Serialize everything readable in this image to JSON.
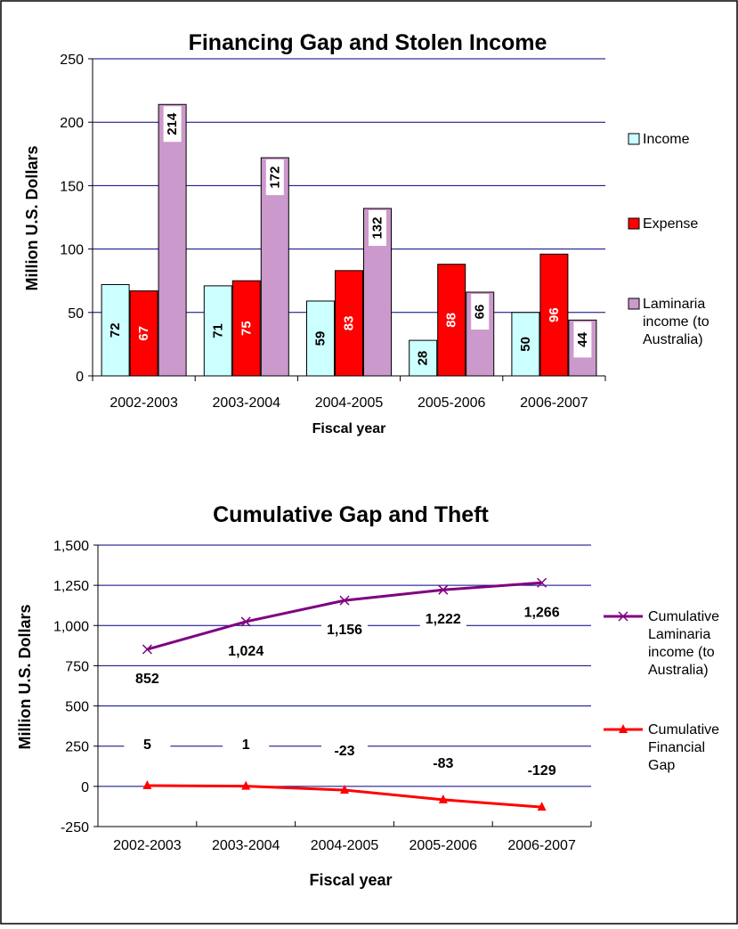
{
  "chart_data": [
    {
      "type": "bar",
      "title": "Financing Gap and Stolen Income",
      "xlabel": "Fiscal year",
      "ylabel": "Million U.S. Dollars",
      "categories": [
        "2002-2003",
        "2003-2004",
        "2004-2005",
        "2005-2006",
        "2006-2007"
      ],
      "ylim": [
        0,
        250
      ],
      "yticks": [
        0,
        50,
        100,
        150,
        200,
        250
      ],
      "grid": true,
      "legend_position": "right",
      "series": [
        {
          "name": "Income",
          "values": [
            72,
            71,
            59,
            28,
            50
          ],
          "color": "#ccffff",
          "label_color": "#000000"
        },
        {
          "name": "Expense",
          "values": [
            67,
            75,
            83,
            88,
            96
          ],
          "color": "#ff0000",
          "label_color": "#ffffff"
        },
        {
          "name": "Laminaria income (to Australia)",
          "values": [
            214,
            172,
            132,
            66,
            44
          ],
          "color": "#cc99cc",
          "label_color": "#000000"
        }
      ]
    },
    {
      "type": "line",
      "title": "Cumulative Gap and Theft",
      "xlabel": "Fiscal year",
      "ylabel": "Million U.S. Dollars",
      "categories": [
        "2002-2003",
        "2003-2004",
        "2004-2005",
        "2005-2006",
        "2006-2007"
      ],
      "ylim": [
        -250,
        1500
      ],
      "yticks": [
        -250,
        0,
        250,
        500,
        750,
        1000,
        1250,
        1500
      ],
      "ytick_labels": [
        "-250",
        "0",
        "250",
        "500",
        "750",
        "1,000",
        "1,250",
        "1,500"
      ],
      "grid": true,
      "legend_position": "right",
      "series": [
        {
          "name": "Cumulative Laminaria income (to Australia)",
          "values": [
            852,
            1024,
            1156,
            1222,
            1266
          ],
          "labels": [
            "852",
            "1,024",
            "1,156",
            "1,222",
            "1,266"
          ],
          "color": "#800080",
          "marker": "x"
        },
        {
          "name": "Cumulative Financial Gap",
          "values": [
            5,
            1,
            -23,
            -83,
            -129
          ],
          "labels": [
            "5",
            "1",
            "-23",
            "-83",
            "-129"
          ],
          "color": "#ff0000",
          "marker": "triangle"
        }
      ]
    }
  ]
}
